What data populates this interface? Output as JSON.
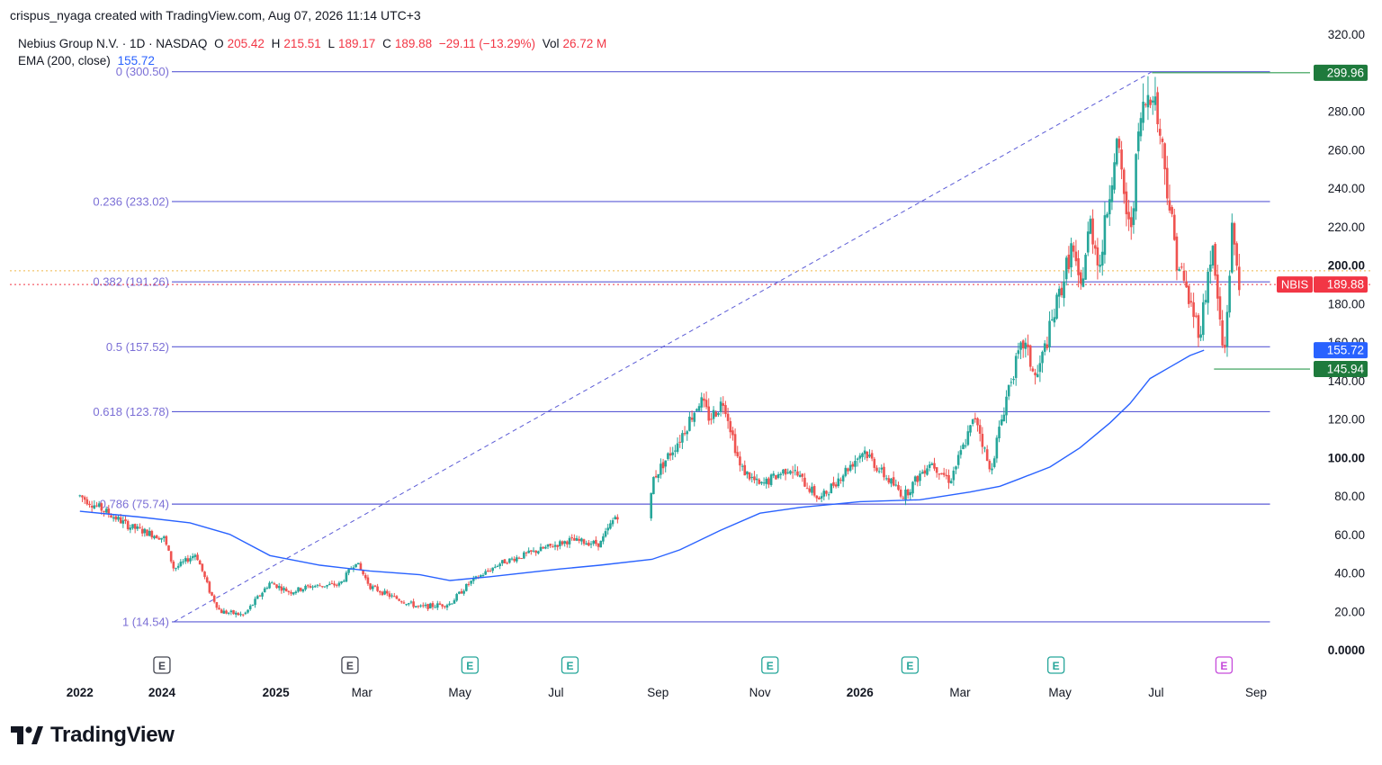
{
  "header": {
    "credit": "crispus_nyaga created with TradingView.com, Aug 07, 2026 11:14 UTC+3"
  },
  "legend": {
    "symbol_line": "Nebius Group N.V. · 1D · NASDAQ",
    "o_label": "O",
    "o_value": "205.42",
    "h_label": "H",
    "h_value": "215.51",
    "l_label": "L",
    "l_value": "189.17",
    "c_label": "C",
    "c_value": "189.88",
    "change": "−29.11 (−13.29%)",
    "vol_label": "Vol",
    "vol_value": "26.72 M",
    "ema_label": "EMA (200, close)",
    "ema_value": "155.72"
  },
  "colors": {
    "up": "#26a69a",
    "down": "#ef5350",
    "ema": "#2962ff",
    "fib": "#5b5bd6",
    "fib_label": "#7b6fd6",
    "price_badge": "#f23645",
    "level_badge": "#1e7a3c"
  },
  "brand": {
    "name": "TradingView",
    "logo_icon": "tradingview-logo-icon"
  },
  "chart_data": {
    "type": "candlestick",
    "ticker": "NBIS",
    "y_axis": {
      "min": 0,
      "max": 320,
      "ticks": [
        "320.00",
        "280.00",
        "260.00",
        "240.00",
        "220.00",
        "200.00",
        "180.00",
        "160.00",
        "140.00",
        "120.00",
        "100.00",
        "80.00",
        "60.00",
        "40.00",
        "20.00",
        "0.0000"
      ],
      "tick_values": [
        320,
        280,
        260,
        240,
        220,
        200,
        180,
        160,
        140,
        120,
        100,
        80,
        60,
        40,
        20,
        0
      ],
      "bold_ticks": [
        "200.00",
        "100.00",
        "0.0000"
      ]
    },
    "x_axis": {
      "labels": [
        {
          "text": "2022",
          "bold": true,
          "t": 0.0
        },
        {
          "text": "2024",
          "bold": true,
          "t": 0.41
        },
        {
          "text": "2025",
          "bold": true,
          "t": 0.98
        },
        {
          "text": "Mar",
          "bold": false,
          "t": 1.41
        },
        {
          "text": "May",
          "bold": false,
          "t": 1.9
        },
        {
          "text": "Jul",
          "bold": false,
          "t": 2.38
        },
        {
          "text": "Sep",
          "bold": false,
          "t": 2.89
        },
        {
          "text": "Nov",
          "bold": false,
          "t": 3.4
        },
        {
          "text": "2026",
          "bold": true,
          "t": 3.9
        },
        {
          "text": "Mar",
          "bold": false,
          "t": 4.4
        },
        {
          "text": "May",
          "bold": false,
          "t": 4.9
        },
        {
          "text": "Jul",
          "bold": false,
          "t": 5.38
        },
        {
          "text": "Sep",
          "bold": false,
          "t": 5.88
        }
      ]
    },
    "fibonacci": [
      {
        "ratio": "0",
        "price": 300.5,
        "label": "0 (300.50)"
      },
      {
        "ratio": "0.236",
        "price": 233.02,
        "label": "0.236 (233.02)"
      },
      {
        "ratio": "0.382",
        "price": 191.26,
        "label": "0.382 (191.26)"
      },
      {
        "ratio": "0.5",
        "price": 157.52,
        "label": "0.5 (157.52)"
      },
      {
        "ratio": "0.618",
        "price": 123.78,
        "label": "0.618 (123.78)"
      },
      {
        "ratio": "0.786",
        "price": 75.74,
        "label": "0.786 (75.74)"
      },
      {
        "ratio": "1",
        "price": 14.54,
        "label": "1 (14.54)"
      }
    ],
    "price_labels": [
      {
        "text": "299.96",
        "value": 299.96,
        "kind": "level"
      },
      {
        "text": "189.88",
        "value": 189.88,
        "kind": "last",
        "symbol": "NBIS"
      },
      {
        "text": "155.72",
        "value": 155.72,
        "kind": "ema"
      },
      {
        "text": "145.94",
        "value": 145.94,
        "kind": "level"
      }
    ],
    "reference_lines": {
      "dotted_orange": 197,
      "dotted_red": 189.88,
      "green_high": 299.96,
      "green_low": 145.94
    },
    "ema_path": [
      [
        0,
        72
      ],
      [
        0.3,
        69
      ],
      [
        0.55,
        66
      ],
      [
        0.75,
        60
      ],
      [
        0.95,
        49
      ],
      [
        1.2,
        44
      ],
      [
        1.45,
        41
      ],
      [
        1.7,
        39
      ],
      [
        1.85,
        36
      ],
      [
        2.05,
        38
      ],
      [
        2.4,
        42
      ],
      [
        2.6,
        44
      ],
      [
        2.86,
        47
      ],
      [
        3.0,
        52
      ],
      [
        3.2,
        62
      ],
      [
        3.4,
        71
      ],
      [
        3.6,
        74
      ],
      [
        3.9,
        77
      ],
      [
        4.2,
        78
      ],
      [
        4.45,
        82
      ],
      [
        4.6,
        85
      ],
      [
        4.7,
        89
      ],
      [
        4.85,
        95
      ],
      [
        5.0,
        105
      ],
      [
        5.15,
        118
      ],
      [
        5.25,
        128
      ],
      [
        5.35,
        141
      ],
      [
        5.45,
        147
      ],
      [
        5.55,
        153
      ],
      [
        5.62,
        155.72
      ]
    ],
    "ohlc_anchors": [
      [
        0.0,
        80
      ],
      [
        0.25,
        64
      ],
      [
        0.42,
        58
      ],
      [
        0.47,
        42
      ],
      [
        0.58,
        50
      ],
      [
        0.65,
        30
      ],
      [
        0.7,
        20
      ],
      [
        0.82,
        18
      ],
      [
        0.95,
        35
      ],
      [
        1.05,
        30
      ],
      [
        1.15,
        33
      ],
      [
        1.3,
        34
      ],
      [
        1.38,
        46
      ],
      [
        1.45,
        33
      ],
      [
        1.55,
        28
      ],
      [
        1.7,
        22
      ],
      [
        1.85,
        24
      ],
      [
        1.95,
        35
      ],
      [
        2.1,
        45
      ],
      [
        2.3,
        52
      ],
      [
        2.45,
        57
      ],
      [
        2.6,
        55
      ],
      [
        2.68,
        70
      ],
      [
        2.85,
        68
      ],
      [
        2.86,
        88
      ],
      [
        3.0,
        110
      ],
      [
        3.1,
        130
      ],
      [
        3.15,
        120
      ],
      [
        3.22,
        130
      ],
      [
        3.3,
        95
      ],
      [
        3.4,
        85
      ],
      [
        3.55,
        95
      ],
      [
        3.7,
        78
      ],
      [
        3.8,
        90
      ],
      [
        3.92,
        104
      ],
      [
        4.0,
        93
      ],
      [
        4.12,
        80
      ],
      [
        4.25,
        98
      ],
      [
        4.35,
        88
      ],
      [
        4.48,
        122
      ],
      [
        4.55,
        92
      ],
      [
        4.65,
        140
      ],
      [
        4.72,
        160
      ],
      [
        4.78,
        140
      ],
      [
        4.88,
        178
      ],
      [
        4.96,
        210
      ],
      [
        5.0,
        185
      ],
      [
        5.05,
        222
      ],
      [
        5.1,
        200
      ],
      [
        5.18,
        265
      ],
      [
        5.25,
        215
      ],
      [
        5.3,
        275
      ],
      [
        5.36,
        295
      ],
      [
        5.42,
        255
      ],
      [
        5.48,
        205
      ],
      [
        5.55,
        180
      ],
      [
        5.6,
        165
      ],
      [
        5.66,
        210
      ],
      [
        5.72,
        150
      ],
      [
        5.76,
        218
      ],
      [
        5.8,
        190
      ]
    ]
  }
}
